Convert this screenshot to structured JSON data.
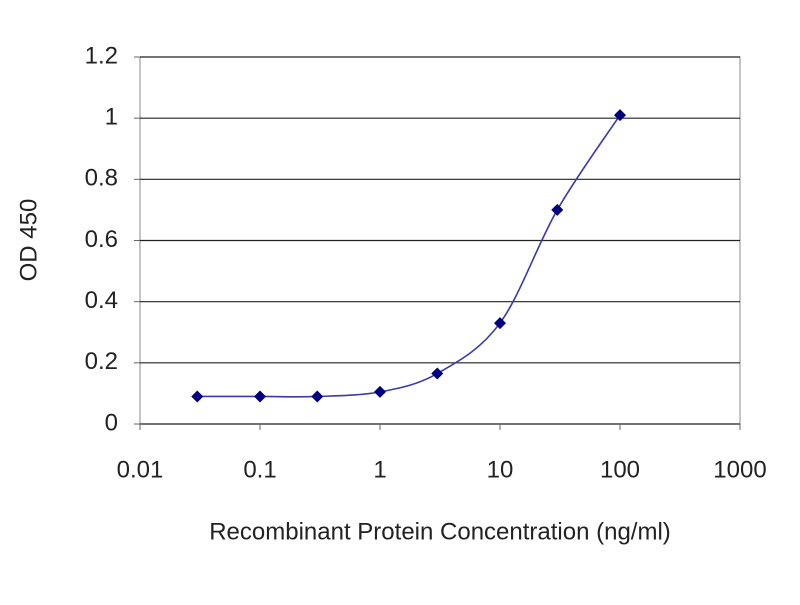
{
  "chart_data": {
    "type": "line",
    "xlabel": "Recombinant Protein Concentration (ng/ml)",
    "ylabel": "OD 450",
    "x": [
      0.03,
      0.1,
      0.3,
      1,
      3,
      10,
      30,
      100
    ],
    "values": [
      0.09,
      0.09,
      0.09,
      0.105,
      0.165,
      0.33,
      0.7,
      1.01
    ],
    "color": "#000080",
    "xscale": "log",
    "xlim": [
      0.01,
      1000
    ],
    "xticks": [
      0.01,
      0.1,
      1,
      10,
      100,
      1000
    ],
    "ylim": [
      0,
      1.2
    ],
    "yticks": [
      0,
      0.2,
      0.4,
      0.6,
      0.8,
      1,
      1.2
    ],
    "grid": true
  }
}
